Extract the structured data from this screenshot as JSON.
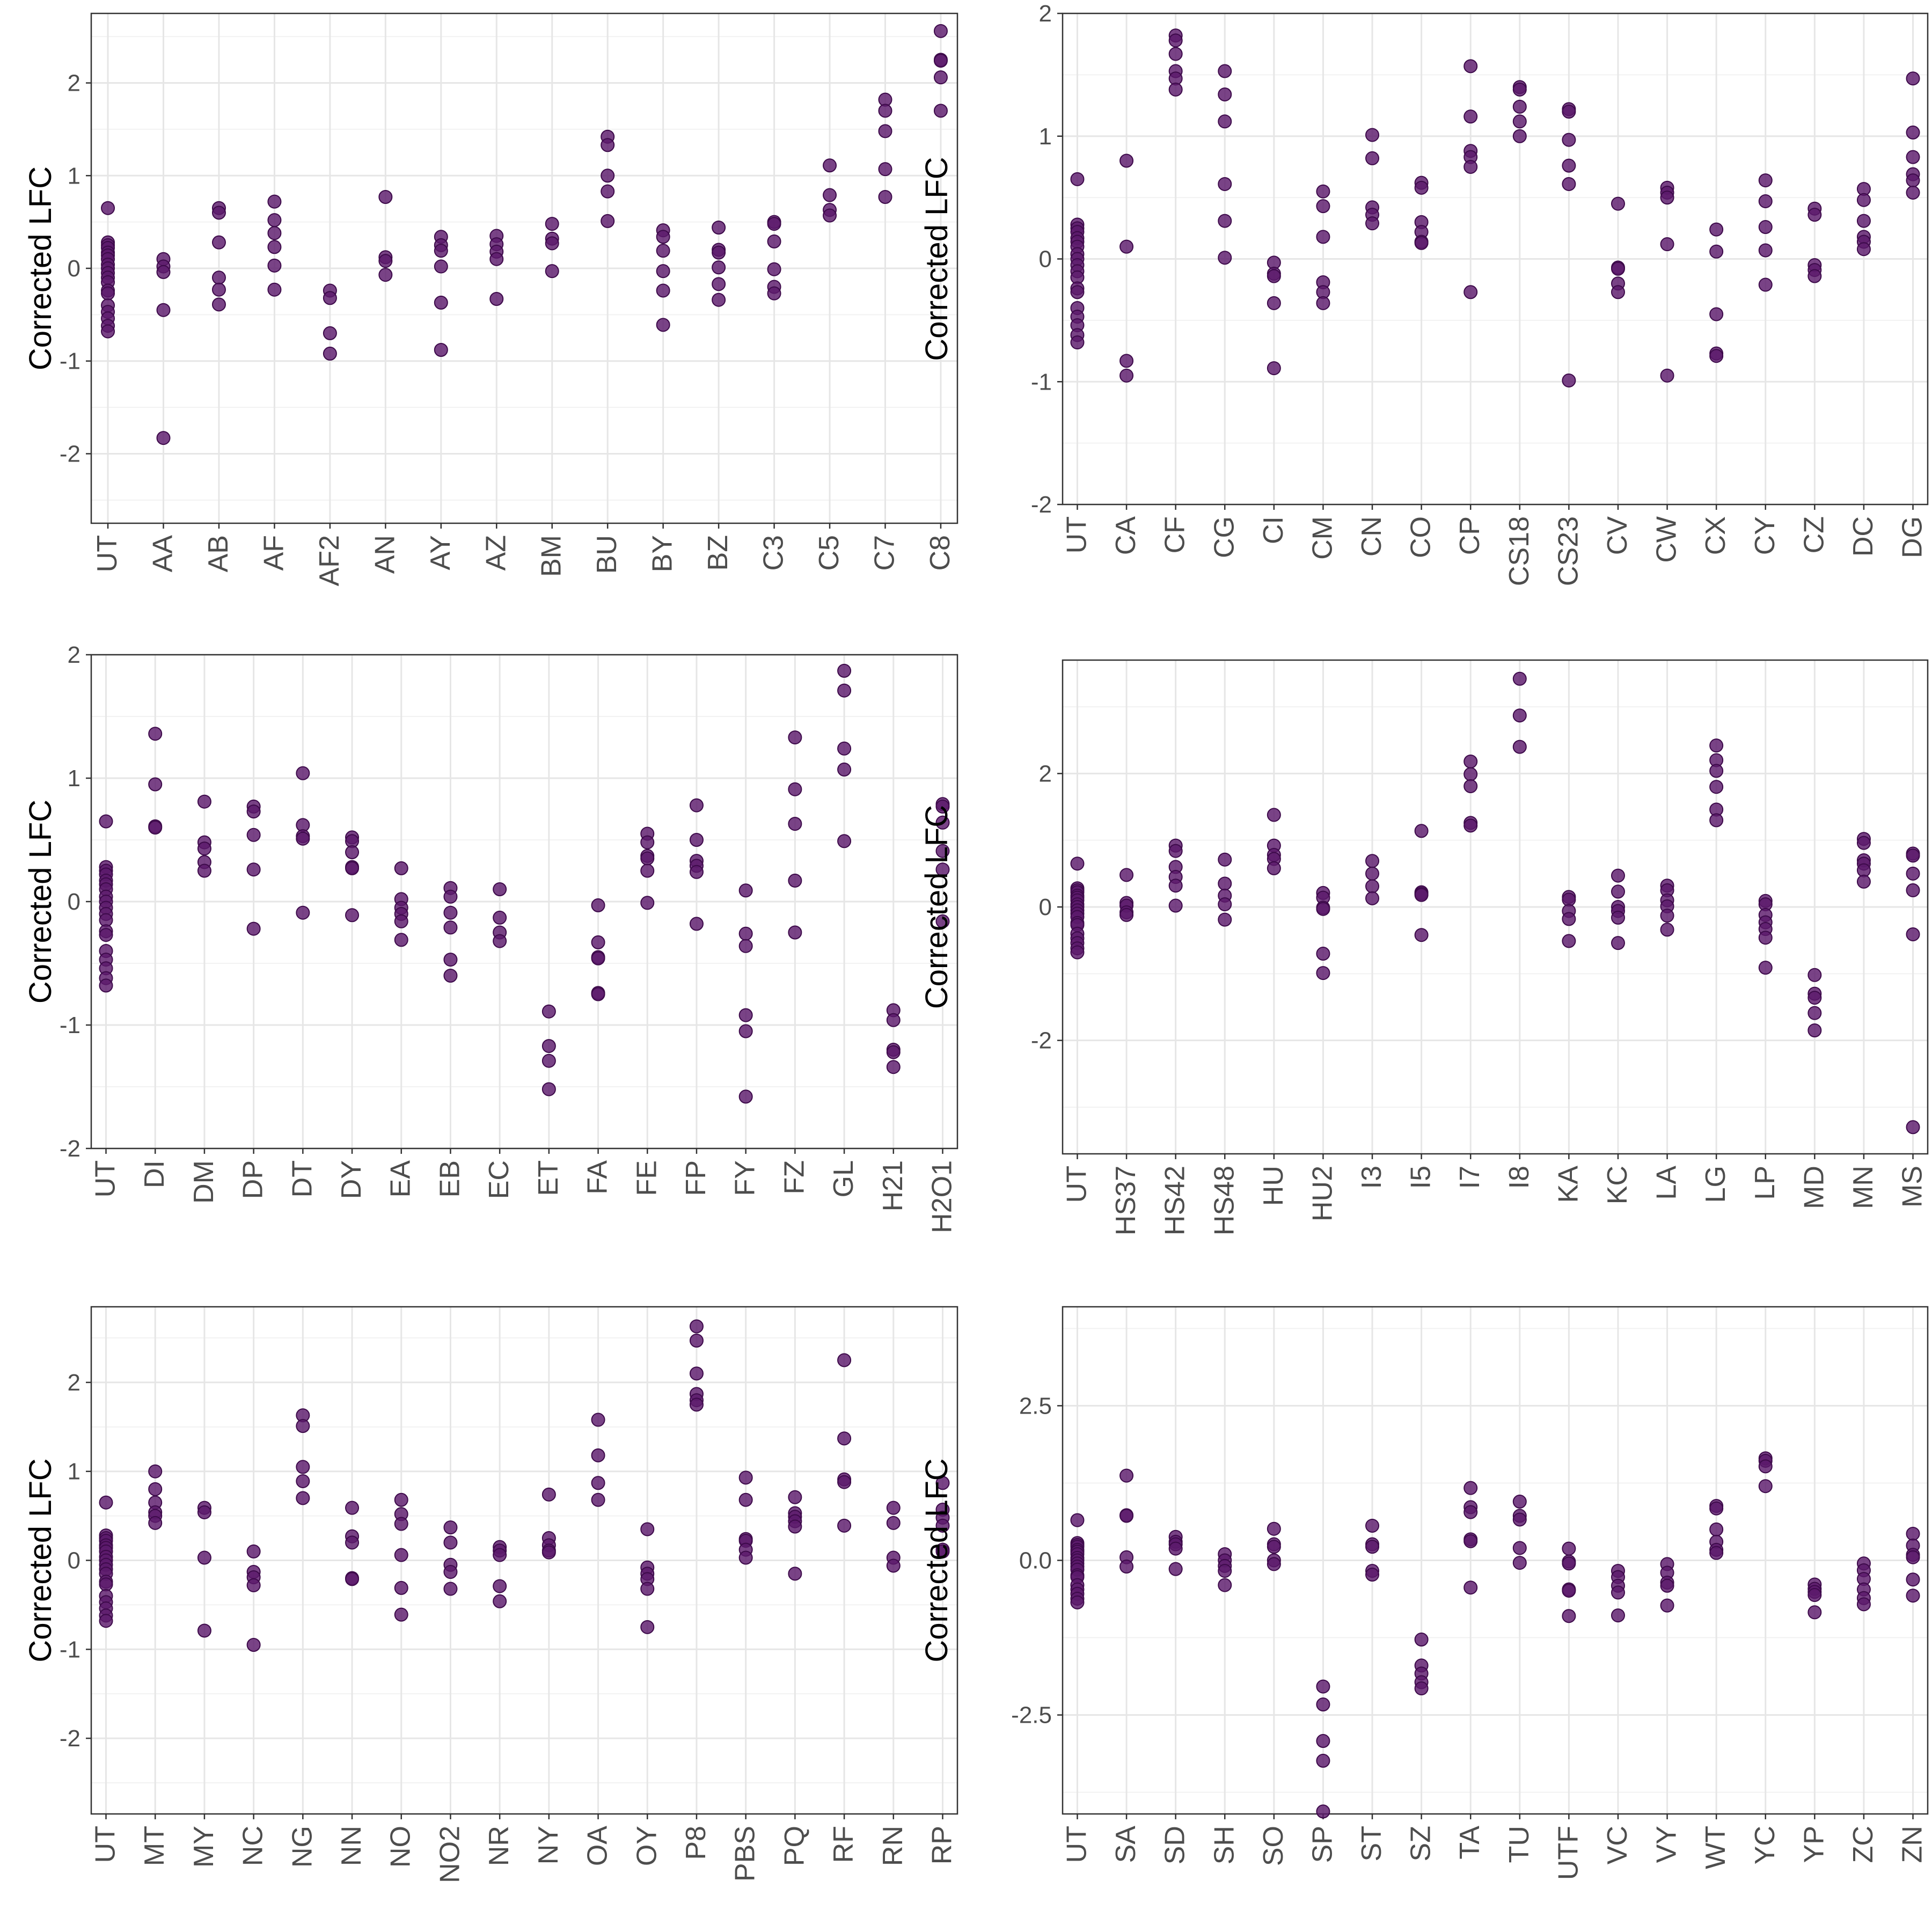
{
  "chart_data": [
    {
      "type": "scatter",
      "ylabel": "Corrected LFC",
      "ylim": [
        -2.75,
        2.75
      ],
      "y_ticks": [
        -2,
        -1,
        0,
        1,
        2
      ],
      "y_tick_labels": [
        "-2",
        "-1",
        "0",
        "1",
        "2"
      ],
      "grid": true,
      "point_color": "#5c1a6b",
      "categories": [
        "UT",
        "AA",
        "AB",
        "AF",
        "AF2",
        "AN",
        "AY",
        "AZ",
        "BM",
        "BU",
        "BY",
        "BZ",
        "C3",
        "C5",
        "C7",
        "C8"
      ],
      "values": [
        [
          0.65,
          0.28,
          0.25,
          0.22,
          0.17,
          0.14,
          0.1,
          0.04,
          0.0,
          -0.05,
          -0.1,
          -0.15,
          -0.24,
          -0.27,
          -0.4,
          -0.47,
          -0.54,
          -0.62,
          -0.68
        ],
        [
          0.1,
          0.02,
          -0.04,
          -0.45,
          -1.83
        ],
        [
          0.65,
          0.6,
          0.28,
          -0.1,
          -0.23,
          -0.39
        ],
        [
          0.72,
          0.52,
          0.38,
          0.23,
          0.03,
          -0.23
        ],
        [
          -0.24,
          -0.32,
          -0.7,
          -0.92
        ],
        [
          0.77,
          0.12,
          0.08,
          -0.07
        ],
        [
          0.34,
          0.25,
          0.19,
          0.02,
          -0.37,
          -0.88
        ],
        [
          0.35,
          0.26,
          0.18,
          0.1,
          -0.33
        ],
        [
          0.48,
          0.32,
          0.27,
          -0.03
        ],
        [
          1.42,
          1.33,
          1.0,
          0.83,
          0.51
        ],
        [
          0.41,
          0.34,
          0.19,
          -0.03,
          -0.24,
          -0.61
        ],
        [
          0.44,
          0.2,
          0.17,
          0.01,
          -0.17,
          -0.34
        ],
        [
          0.5,
          0.48,
          0.29,
          -0.01,
          -0.2,
          -0.27
        ],
        [
          1.11,
          0.79,
          0.63,
          0.57
        ],
        [
          1.82,
          1.7,
          1.48,
          1.07,
          0.77
        ],
        [
          2.56,
          2.25,
          2.24,
          2.06,
          1.7
        ]
      ]
    },
    {
      "type": "scatter",
      "ylabel": "Corrected LFC",
      "ylim": [
        -2,
        2
      ],
      "y_ticks": [
        -2,
        -1,
        0,
        1,
        2
      ],
      "y_tick_labels": [
        "-2",
        "-1",
        "0",
        "1",
        "2"
      ],
      "grid": true,
      "point_color": "#5c1a6b",
      "categories": [
        "UT",
        "CA",
        "CF",
        "CG",
        "CI",
        "CM",
        "CN",
        "CO",
        "CP",
        "CS18",
        "CS23",
        "CV",
        "CW",
        "CX",
        "CY",
        "CZ",
        "DC",
        "DG"
      ],
      "values": [
        [
          0.65,
          0.28,
          0.25,
          0.22,
          0.17,
          0.14,
          0.1,
          0.04,
          0.0,
          -0.05,
          -0.1,
          -0.15,
          -0.24,
          -0.27,
          -0.4,
          -0.47,
          -0.54,
          -0.62,
          -0.68
        ],
        [
          0.8,
          0.1,
          -0.83,
          -0.95
        ],
        [
          1.82,
          1.78,
          1.67,
          1.53,
          1.47,
          1.38
        ],
        [
          1.53,
          1.34,
          1.12,
          0.61,
          0.31,
          0.01
        ],
        [
          -0.03,
          -0.12,
          -0.14,
          -0.36,
          -0.89
        ],
        [
          0.55,
          0.43,
          0.18,
          -0.19,
          -0.27,
          -0.36
        ],
        [
          1.01,
          0.82,
          0.42,
          0.36,
          0.29
        ],
        [
          0.62,
          0.58,
          0.3,
          0.22,
          0.14,
          0.13
        ],
        [
          1.57,
          1.16,
          0.88,
          0.83,
          0.75,
          -0.27
        ],
        [
          1.4,
          1.38,
          1.24,
          1.12,
          1.0
        ],
        [
          1.22,
          1.2,
          0.97,
          0.76,
          0.61,
          -0.99
        ],
        [
          0.45,
          -0.07,
          -0.08,
          -0.2,
          -0.27
        ],
        [
          0.58,
          0.54,
          0.5,
          0.12,
          -0.95
        ],
        [
          0.24,
          0.06,
          -0.45,
          -0.77,
          -0.79
        ],
        [
          0.64,
          0.47,
          0.26,
          0.07,
          -0.21
        ],
        [
          0.41,
          0.36,
          -0.05,
          -0.09,
          -0.14
        ],
        [
          0.57,
          0.48,
          0.31,
          0.18,
          0.14,
          0.08
        ],
        [
          1.47,
          1.03,
          0.83,
          0.69,
          0.64,
          0.54
        ]
      ]
    },
    {
      "type": "scatter",
      "ylabel": "Corrected LFC",
      "ylim": [
        -2,
        2
      ],
      "y_ticks": [
        -2,
        -1,
        0,
        1,
        2
      ],
      "y_tick_labels": [
        "-2",
        "-1",
        "0",
        "1",
        "2"
      ],
      "grid": true,
      "point_color": "#5c1a6b",
      "categories": [
        "UT",
        "DI",
        "DM",
        "DP",
        "DT",
        "DY",
        "EA",
        "EB",
        "EC",
        "ET",
        "FA",
        "FE",
        "FP",
        "FY",
        "FZ",
        "GL",
        "H21",
        "H2O1"
      ],
      "values": [
        [
          0.65,
          0.28,
          0.25,
          0.22,
          0.17,
          0.14,
          0.1,
          0.04,
          0.0,
          -0.05,
          -0.1,
          -0.15,
          -0.24,
          -0.27,
          -0.4,
          -0.47,
          -0.54,
          -0.62,
          -0.68
        ],
        [
          1.36,
          0.95,
          0.61,
          0.6
        ],
        [
          0.81,
          0.48,
          0.43,
          0.32,
          0.25
        ],
        [
          0.77,
          0.73,
          0.54,
          0.26,
          -0.22
        ],
        [
          1.04,
          0.62,
          0.53,
          0.51,
          -0.09
        ],
        [
          0.52,
          0.49,
          0.4,
          0.28,
          0.27,
          -0.11
        ],
        [
          0.27,
          0.02,
          -0.05,
          -0.1,
          -0.16,
          -0.31
        ],
        [
          0.11,
          0.04,
          -0.09,
          -0.21,
          -0.47,
          -0.6
        ],
        [
          0.1,
          -0.13,
          -0.25,
          -0.32
        ],
        [
          -0.89,
          -1.17,
          -1.29,
          -1.52
        ],
        [
          -0.03,
          -0.33,
          -0.45,
          -0.46,
          -0.74,
          -0.75
        ],
        [
          0.55,
          0.48,
          0.37,
          0.35,
          0.25,
          -0.01
        ],
        [
          0.78,
          0.5,
          0.33,
          0.29,
          0.24,
          -0.18
        ],
        [
          0.09,
          -0.26,
          -0.36,
          -0.92,
          -1.05,
          -1.58
        ],
        [
          1.33,
          0.91,
          0.63,
          0.17,
          -0.25
        ],
        [
          1.87,
          1.71,
          1.24,
          1.07,
          0.49
        ],
        [
          -0.88,
          -0.96,
          -1.2,
          -1.22,
          -1.34
        ],
        [
          0.79,
          0.77,
          0.64,
          0.41,
          0.26,
          -0.16
        ]
      ]
    },
    {
      "type": "scatter",
      "ylabel": "Corrected LFC",
      "ylim": [
        -3.7,
        3.7
      ],
      "y_ticks": [
        -2,
        0,
        2
      ],
      "y_tick_labels": [
        "-2",
        "0",
        "2"
      ],
      "grid": true,
      "point_color": "#5c1a6b",
      "categories": [
        "UT",
        "HS37",
        "HS42",
        "HS48",
        "HU",
        "HU2",
        "I3",
        "I5",
        "I7",
        "I8",
        "KA",
        "KC",
        "LA",
        "LG",
        "LP",
        "MD",
        "MN",
        "MS"
      ],
      "values": [
        [
          0.65,
          0.28,
          0.25,
          0.22,
          0.17,
          0.14,
          0.1,
          0.04,
          0.0,
          -0.05,
          -0.1,
          -0.15,
          -0.24,
          -0.27,
          -0.4,
          -0.47,
          -0.54,
          -0.62,
          -0.68
        ],
        [
          0.48,
          0.06,
          0.02,
          -0.08,
          -0.12
        ],
        [
          0.92,
          0.84,
          0.6,
          0.45,
          0.32,
          0.02
        ],
        [
          0.71,
          0.35,
          0.17,
          0.04,
          -0.19
        ],
        [
          1.38,
          0.92,
          0.78,
          0.72,
          0.58
        ],
        [
          0.21,
          0.14,
          -0.01,
          -0.03,
          -0.7,
          -0.99
        ],
        [
          0.69,
          0.5,
          0.31,
          0.13
        ],
        [
          1.14,
          0.22,
          0.2,
          0.18,
          -0.42
        ],
        [
          2.18,
          1.99,
          1.81,
          1.26,
          1.22
        ],
        [
          3.42,
          2.87,
          2.4
        ],
        [
          0.15,
          0.11,
          -0.06,
          -0.18,
          -0.51
        ],
        [
          0.47,
          0.23,
          0.0,
          -0.06,
          -0.16,
          -0.54
        ],
        [
          0.32,
          0.25,
          0.1,
          0.01,
          -0.13,
          -0.34
        ],
        [
          2.42,
          2.2,
          2.04,
          1.8,
          1.46,
          1.3
        ],
        [
          0.09,
          0.04,
          -0.12,
          -0.23,
          -0.33,
          -0.46,
          -0.91
        ],
        [
          -1.02,
          -1.3,
          -1.36,
          -1.59,
          -1.85
        ],
        [
          1.02,
          0.96,
          0.7,
          0.65,
          0.55,
          0.38
        ],
        [
          0.8,
          0.77,
          0.5,
          0.25,
          -0.41,
          -3.3
        ]
      ]
    },
    {
      "type": "scatter",
      "ylabel": "Corrected LFC",
      "ylim": [
        -2.85,
        2.85
      ],
      "y_ticks": [
        -2,
        -1,
        0,
        1,
        2
      ],
      "y_tick_labels": [
        "-2",
        "-1",
        "0",
        "1",
        "2"
      ],
      "grid": true,
      "point_color": "#5c1a6b",
      "categories": [
        "UT",
        "MT",
        "MY",
        "NC",
        "NG",
        "NN",
        "NO",
        "NO2",
        "NR",
        "NY",
        "OA",
        "OY",
        "P8",
        "PBS",
        "PQ",
        "RF",
        "RN",
        "RP"
      ],
      "values": [
        [
          0.65,
          0.28,
          0.25,
          0.22,
          0.17,
          0.14,
          0.1,
          0.04,
          0.0,
          -0.05,
          -0.1,
          -0.15,
          -0.24,
          -0.27,
          -0.4,
          -0.47,
          -0.54,
          -0.62,
          -0.68
        ],
        [
          1.0,
          0.8,
          0.65,
          0.54,
          0.5,
          0.42
        ],
        [
          0.59,
          0.54,
          0.03,
          -0.79
        ],
        [
          0.1,
          -0.13,
          -0.19,
          -0.28,
          -0.95
        ],
        [
          1.63,
          1.51,
          1.05,
          0.89,
          0.7
        ],
        [
          0.59,
          0.27,
          0.2,
          -0.2,
          -0.21
        ],
        [
          0.68,
          0.52,
          0.41,
          0.06,
          -0.31,
          -0.61
        ],
        [
          0.37,
          0.2,
          -0.05,
          -0.13,
          -0.32
        ],
        [
          0.15,
          0.11,
          0.06,
          -0.29,
          -0.46
        ],
        [
          0.74,
          0.25,
          0.17,
          0.11,
          0.09
        ],
        [
          1.58,
          1.18,
          0.87,
          0.68
        ],
        [
          0.35,
          -0.08,
          -0.15,
          -0.21,
          -0.32,
          -0.75
        ],
        [
          2.63,
          2.47,
          2.1,
          1.87,
          1.8,
          1.75
        ],
        [
          0.93,
          0.68,
          0.24,
          0.22,
          0.12,
          0.03
        ],
        [
          0.71,
          0.53,
          0.49,
          0.44,
          0.38,
          -0.15
        ],
        [
          2.25,
          1.37,
          0.91,
          0.88,
          0.39
        ],
        [
          0.59,
          0.42,
          0.03,
          -0.06
        ],
        [
          0.87,
          0.57,
          0.48,
          0.39,
          0.12,
          0.1
        ]
      ]
    },
    {
      "type": "scatter",
      "ylabel": "Corrected LFC",
      "ylim": [
        -4.1,
        4.1
      ],
      "y_ticks": [
        -2.5,
        0,
        2.5
      ],
      "y_tick_labels": [
        "-2.5",
        "0.0",
        "2.5"
      ],
      "grid": true,
      "point_color": "#5c1a6b",
      "categories": [
        "UT",
        "SA",
        "SD",
        "SH",
        "SO",
        "SP",
        "ST",
        "SZ",
        "TA",
        "TU",
        "UTF",
        "VC",
        "VY",
        "WT",
        "YC",
        "YP",
        "ZC",
        "ZN"
      ],
      "values": [
        [
          0.65,
          0.28,
          0.25,
          0.22,
          0.17,
          0.14,
          0.1,
          0.04,
          0.0,
          -0.05,
          -0.1,
          -0.15,
          -0.24,
          -0.27,
          -0.4,
          -0.47,
          -0.54,
          -0.62,
          -0.68
        ],
        [
          1.37,
          0.73,
          0.72,
          0.05,
          -0.1
        ],
        [
          0.38,
          0.3,
          0.26,
          0.19,
          -0.14
        ],
        [
          0.1,
          0.0,
          -0.09,
          -0.17,
          -0.4
        ],
        [
          0.51,
          0.26,
          0.22,
          0.0,
          -0.06
        ],
        [
          -2.04,
          -2.33,
          -2.92,
          -3.24,
          -4.06
        ],
        [
          0.56,
          0.26,
          0.22,
          -0.17,
          -0.23
        ],
        [
          -1.28,
          -1.7,
          -1.83,
          -1.97,
          -2.07
        ],
        [
          1.17,
          0.86,
          0.78,
          0.34,
          0.31,
          -0.44
        ],
        [
          0.95,
          0.72,
          0.66,
          0.2,
          -0.04
        ],
        [
          0.19,
          -0.02,
          -0.05,
          -0.47,
          -0.49,
          -0.9
        ],
        [
          -0.17,
          -0.27,
          -0.41,
          -0.52,
          -0.89
        ],
        [
          -0.06,
          -0.2,
          -0.36,
          -0.41,
          -0.73
        ],
        [
          0.88,
          0.84,
          0.5,
          0.3,
          0.17,
          0.12
        ],
        [
          1.65,
          1.61,
          1.52,
          1.2
        ],
        [
          -0.39,
          -0.46,
          -0.51,
          -0.56,
          -0.84
        ],
        [
          -0.05,
          -0.16,
          -0.3,
          -0.47,
          -0.61,
          -0.71
        ],
        [
          0.43,
          0.24,
          0.09,
          0.05,
          -0.31,
          -0.57
        ]
      ]
    }
  ]
}
